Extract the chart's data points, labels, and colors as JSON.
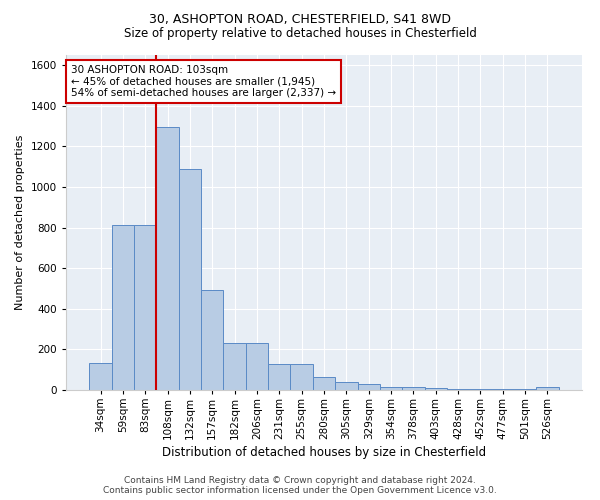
{
  "title1": "30, ASHOPTON ROAD, CHESTERFIELD, S41 8WD",
  "title2": "Size of property relative to detached houses in Chesterfield",
  "xlabel": "Distribution of detached houses by size in Chesterfield",
  "ylabel": "Number of detached properties",
  "footer1": "Contains HM Land Registry data © Crown copyright and database right 2024.",
  "footer2": "Contains public sector information licensed under the Open Government Licence v3.0.",
  "annotation_line1": "30 ASHOPTON ROAD: 103sqm",
  "annotation_line2": "← 45% of detached houses are smaller (1,945)",
  "annotation_line3": "54% of semi-detached houses are larger (2,337) →",
  "bar_color": "#b8cce4",
  "bar_edge_color": "#5a8ac6",
  "vline_color": "#cc0000",
  "bg_color": "#e8eef5",
  "grid_color": "#ffffff",
  "bins": [
    "34sqm",
    "59sqm",
    "83sqm",
    "108sqm",
    "132sqm",
    "157sqm",
    "182sqm",
    "206sqm",
    "231sqm",
    "255sqm",
    "280sqm",
    "305sqm",
    "329sqm",
    "354sqm",
    "378sqm",
    "403sqm",
    "428sqm",
    "452sqm",
    "477sqm",
    "501sqm",
    "526sqm"
  ],
  "values": [
    135,
    815,
    815,
    1295,
    1090,
    495,
    230,
    230,
    130,
    130,
    65,
    37,
    28,
    15,
    15,
    10,
    5,
    3,
    3,
    3,
    13
  ],
  "vline_x": 2.5,
  "ylim": [
    0,
    1650
  ],
  "yticks": [
    0,
    200,
    400,
    600,
    800,
    1000,
    1200,
    1400,
    1600
  ],
  "title1_fontsize": 9,
  "title2_fontsize": 8.5,
  "ylabel_fontsize": 8,
  "xlabel_fontsize": 8.5,
  "tick_fontsize": 7.5,
  "footer_fontsize": 6.5,
  "annotation_fontsize": 7.5
}
